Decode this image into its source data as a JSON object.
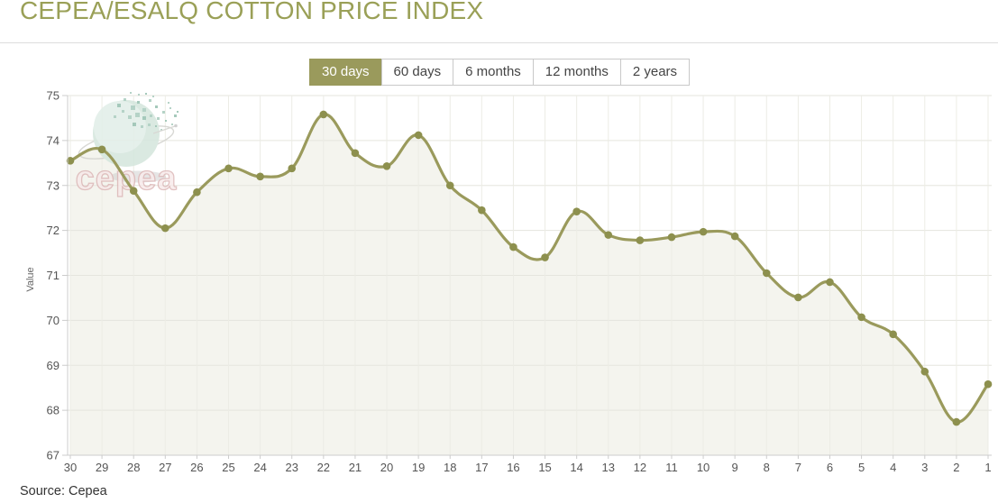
{
  "page": {
    "title": "CEPEA/ESALQ COTTON PRICE INDEX",
    "source_note": "Source: Cepea"
  },
  "toolbar": {
    "ranges": [
      {
        "label": "30 days",
        "active": true
      },
      {
        "label": "60 days",
        "active": false
      },
      {
        "label": "6 months",
        "active": false
      },
      {
        "label": "12 months",
        "active": false
      },
      {
        "label": "2 years",
        "active": false
      }
    ]
  },
  "watermark": {
    "text": "cepea"
  },
  "chart_data": {
    "type": "area",
    "x": [
      30,
      29,
      28,
      27,
      26,
      25,
      24,
      23,
      22,
      21,
      20,
      19,
      18,
      17,
      16,
      15,
      14,
      13,
      12,
      11,
      10,
      9,
      8,
      7,
      6,
      5,
      4,
      3,
      2,
      1
    ],
    "values": [
      73.55,
      73.8,
      72.88,
      72.05,
      72.85,
      73.38,
      73.2,
      73.38,
      74.58,
      73.72,
      73.43,
      74.12,
      73.0,
      72.45,
      71.63,
      71.4,
      72.42,
      71.9,
      71.78,
      71.85,
      71.97,
      71.87,
      71.05,
      70.51,
      70.85,
      70.07,
      69.69,
      68.86,
      67.74,
      68.58
    ],
    "title": "CEPEA/ESALQ COTTON PRICE INDEX",
    "xlabel": "",
    "ylabel": "Value",
    "ylim": [
      67,
      75
    ],
    "y_tick_step": 1,
    "grid": true,
    "legend_position": "none",
    "line_color": "#9A9A5C",
    "marker_color": "#8D904E",
    "fill_color": "#F4F4EE"
  },
  "colors": {
    "accent": "#9A9A5C",
    "title_text": "#9AA057",
    "axis_text": "#555555",
    "grid_h": "#E5E5DE",
    "grid_v": "#ECECE5",
    "axis_line": "#CCCCCC",
    "button_border": "#C9C9C9",
    "button_text": "#444444",
    "active_button_text": "#FFFFFF"
  }
}
